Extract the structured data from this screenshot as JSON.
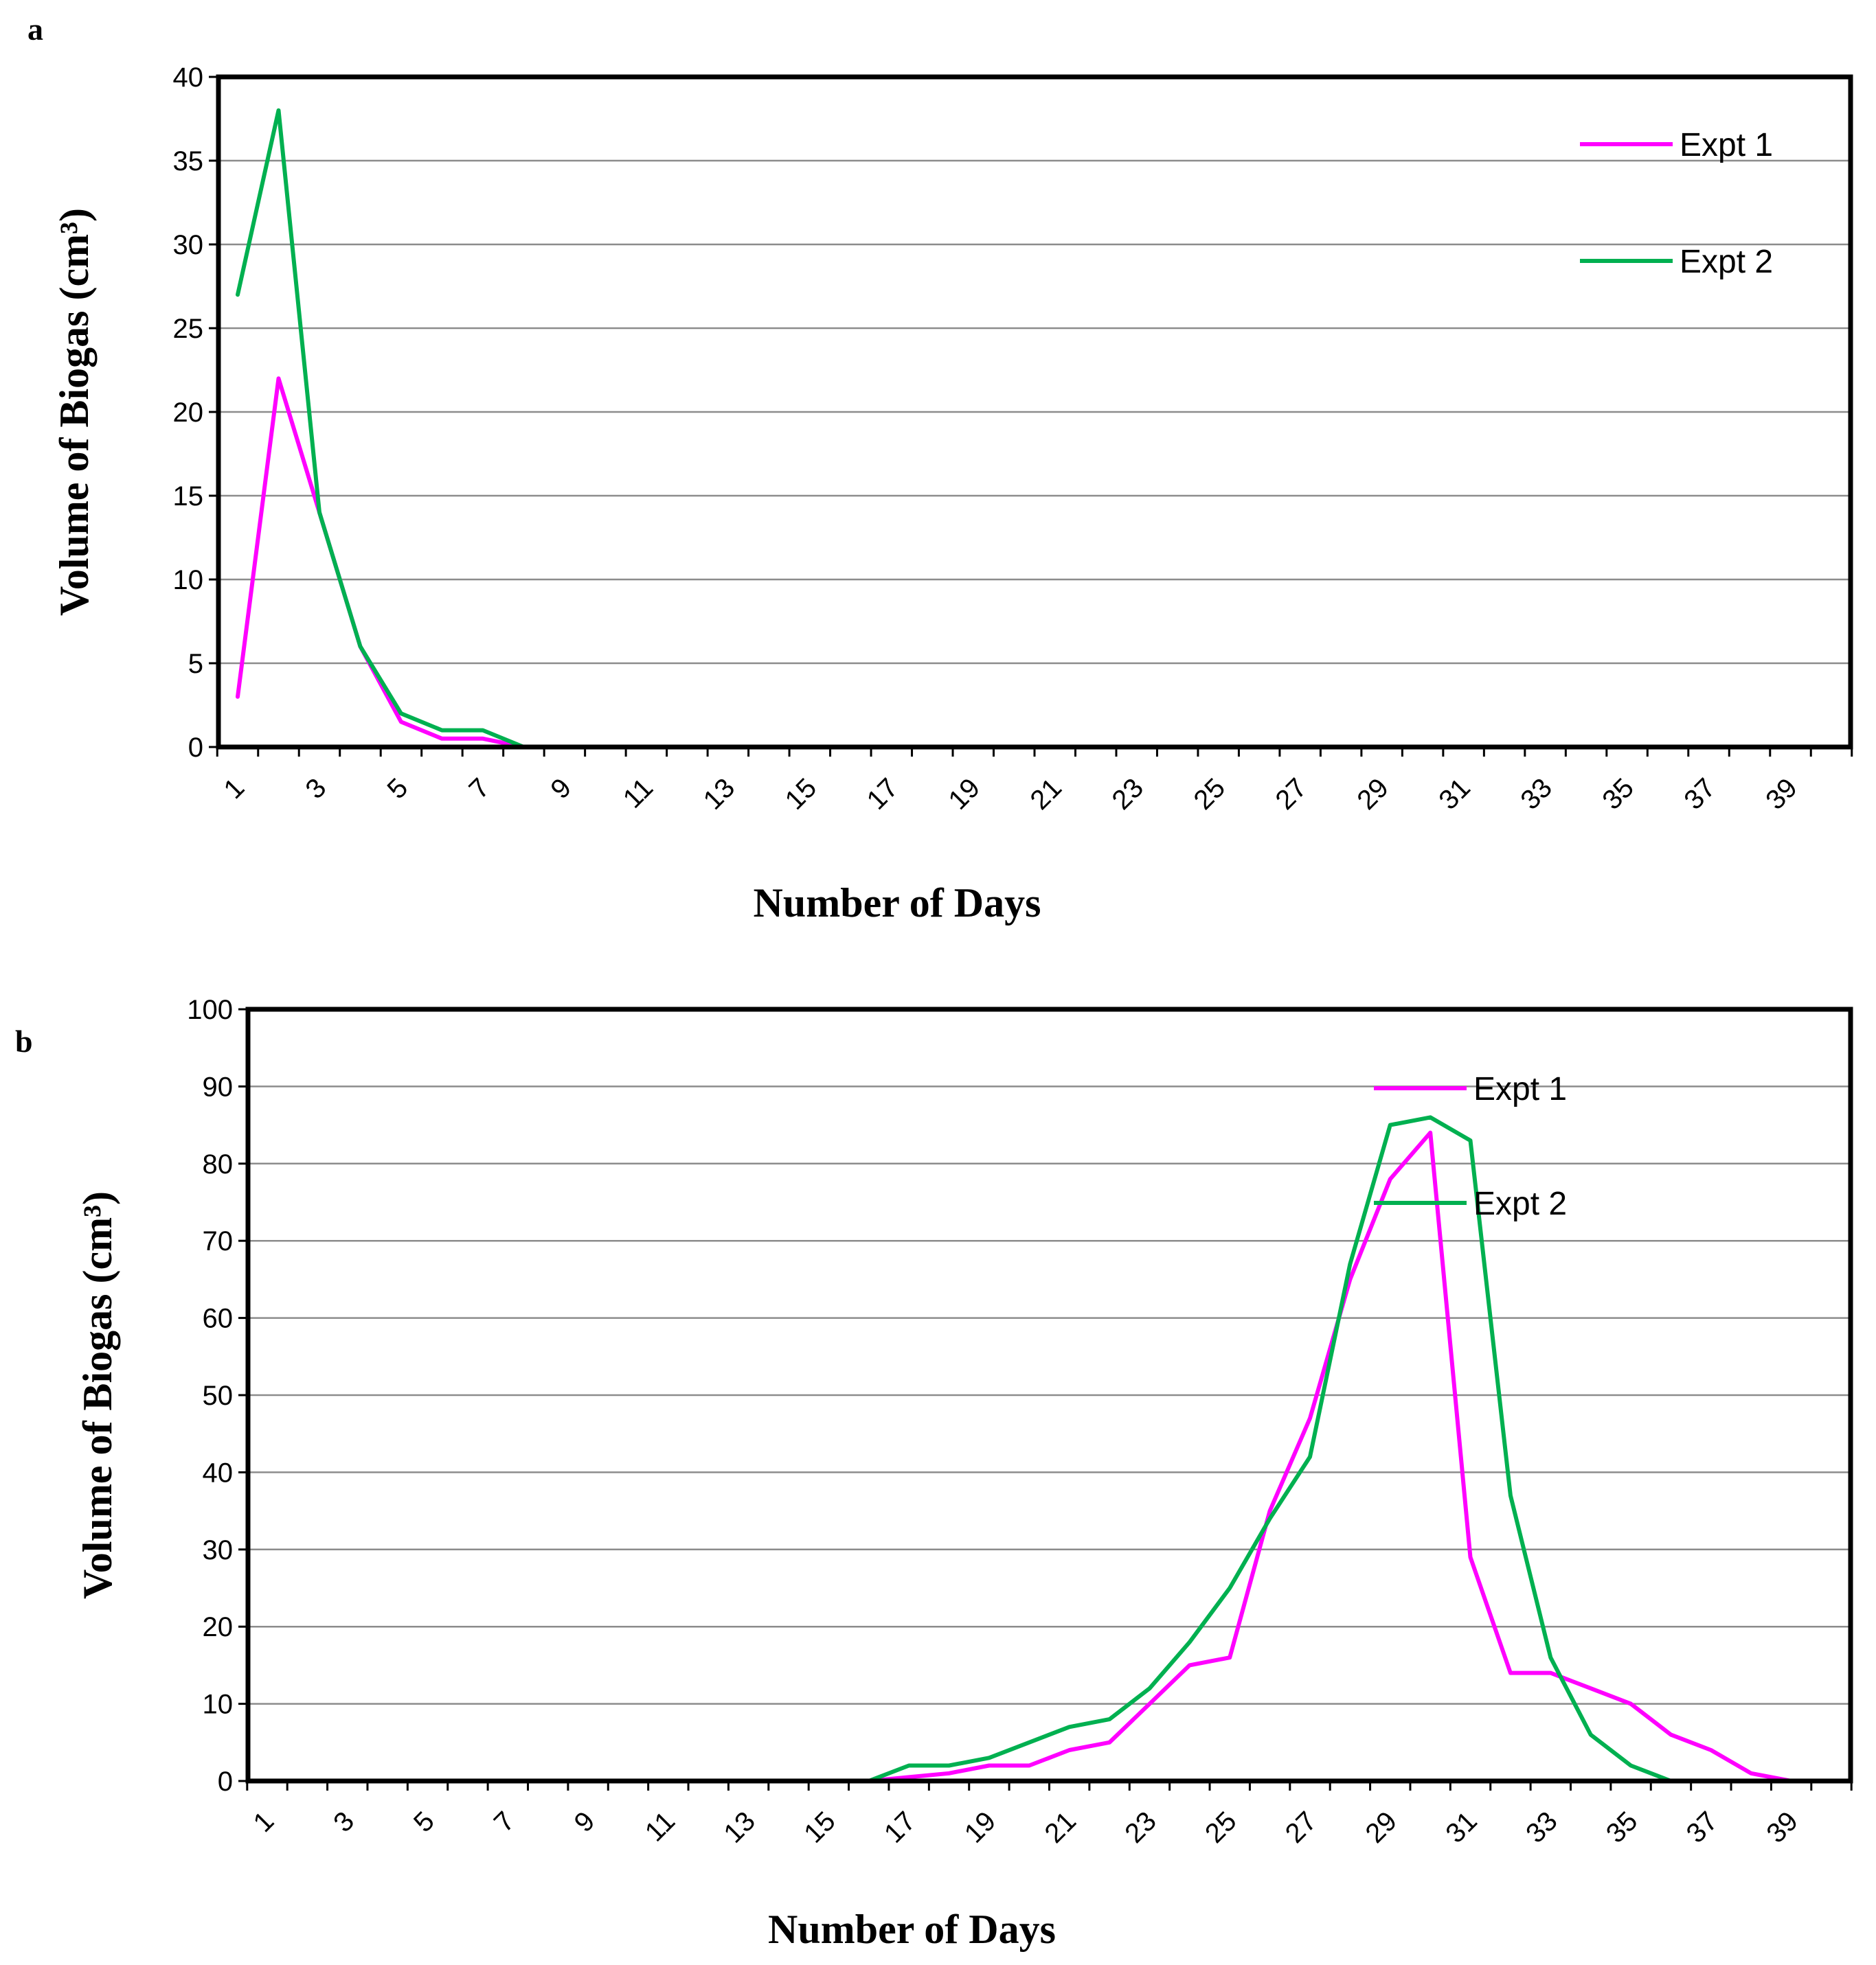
{
  "chart_data": [
    {
      "panel": "a",
      "type": "line",
      "xlabel": "Number  of Days",
      "ylabel": "Volume  of Biogas (cm³)",
      "ylim": [
        0,
        40
      ],
      "yticks": [
        0,
        5,
        10,
        15,
        20,
        25,
        30,
        35,
        40
      ],
      "xticks": [
        "1",
        "3",
        "5",
        "7",
        "9",
        "11",
        "13",
        "15",
        "17",
        "19",
        "21",
        "23",
        "25",
        "27",
        "29",
        "31",
        "33",
        "35",
        "37",
        "39"
      ],
      "x": [
        1,
        2,
        3,
        4,
        5,
        6,
        7,
        8,
        9,
        10,
        11,
        12,
        13,
        14,
        15,
        16,
        17,
        18,
        19,
        20,
        21,
        22,
        23,
        24,
        25,
        26,
        27,
        28,
        29,
        30,
        31,
        32,
        33,
        34,
        35,
        36,
        37,
        38,
        39,
        40
      ],
      "grid": true,
      "legend_position": "top-right",
      "series": [
        {
          "name": "Expt 1",
          "color": "#ff00ff",
          "values": [
            3,
            22,
            14,
            6,
            1.5,
            0.5,
            0.5,
            0,
            0,
            0,
            0,
            0,
            0,
            0,
            0,
            0,
            0,
            0,
            0,
            0,
            0,
            0,
            0,
            0,
            0,
            0,
            0,
            0,
            0,
            0,
            0,
            0,
            0,
            0,
            0,
            0,
            0,
            0,
            0,
            0
          ]
        },
        {
          "name": "Expt 2",
          "color": "#00b050",
          "values": [
            27,
            38,
            14,
            6,
            2,
            1,
            1,
            0,
            0,
            0,
            0,
            0,
            0,
            0,
            0,
            0,
            0,
            0,
            0,
            0,
            0,
            0,
            0,
            0,
            0,
            0,
            0,
            0,
            0,
            0,
            0,
            0,
            0,
            0,
            0,
            0,
            0,
            0,
            0,
            0
          ]
        }
      ]
    },
    {
      "panel": "b",
      "type": "line",
      "xlabel": "Number  of Days",
      "ylabel": "Volume  of Biogas (cm³)",
      "ylim": [
        0,
        100
      ],
      "yticks": [
        0,
        10,
        20,
        30,
        40,
        50,
        60,
        70,
        80,
        90,
        100
      ],
      "xticks": [
        "1",
        "3",
        "5",
        "7",
        "9",
        "11",
        "13",
        "15",
        "17",
        "19",
        "21",
        "23",
        "25",
        "27",
        "29",
        "31",
        "33",
        "35",
        "37",
        "39"
      ],
      "x": [
        1,
        2,
        3,
        4,
        5,
        6,
        7,
        8,
        9,
        10,
        11,
        12,
        13,
        14,
        15,
        16,
        17,
        18,
        19,
        20,
        21,
        22,
        23,
        24,
        25,
        26,
        27,
        28,
        29,
        30,
        31,
        32,
        33,
        34,
        35,
        36,
        37,
        38,
        39,
        40
      ],
      "grid": true,
      "legend_position": "top-right",
      "series": [
        {
          "name": "Expt 1",
          "color": "#ff00ff",
          "values": [
            0,
            0,
            0,
            0,
            0,
            0,
            0,
            0,
            0,
            0,
            0,
            0,
            0,
            0,
            0,
            0,
            0.5,
            1,
            2,
            2,
            4,
            5,
            10,
            15,
            16,
            35,
            47,
            65,
            78,
            84,
            29,
            14,
            14,
            12,
            10,
            6,
            4,
            1,
            0,
            0
          ]
        },
        {
          "name": "Expt 2",
          "color": "#00b050",
          "values": [
            0,
            0,
            0,
            0,
            0,
            0,
            0,
            0,
            0,
            0,
            0,
            0,
            0,
            0,
            0,
            0,
            2,
            2,
            3,
            5,
            7,
            8,
            12,
            18,
            25,
            34,
            42,
            67,
            85,
            86,
            83,
            37,
            16,
            6,
            2,
            0,
            0,
            0,
            0,
            0
          ]
        }
      ]
    }
  ]
}
